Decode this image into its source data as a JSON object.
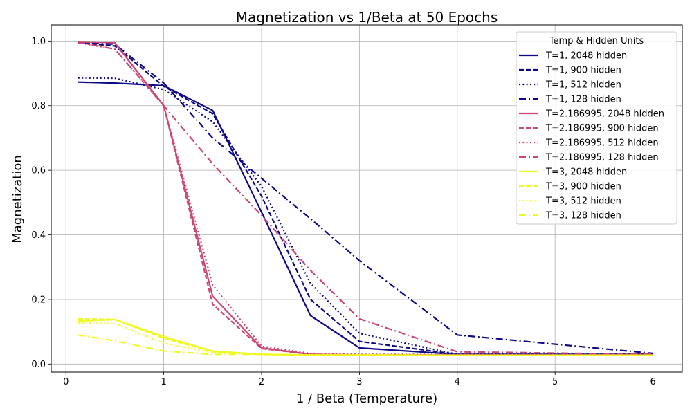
{
  "chart_data": {
    "type": "line",
    "title": "Magnetization vs 1/Beta at 50 Epochs",
    "xlabel": "1 / Beta (Temperature)",
    "ylabel": "Magnetization",
    "xlim": [
      -0.15,
      6.3
    ],
    "ylim": [
      -0.025,
      1.05
    ],
    "xticks": [
      0,
      1,
      2,
      3,
      4,
      5,
      6
    ],
    "xtick_labels": [
      "0",
      "1",
      "2",
      "3",
      "4",
      "5",
      "6"
    ],
    "yticks": [
      0.0,
      0.2,
      0.4,
      0.6,
      0.8,
      1.0
    ],
    "ytick_labels": [
      "0.0",
      "0.2",
      "0.4",
      "0.6",
      "0.8",
      "1.0"
    ],
    "grid": true,
    "legend_title": "Temp & Hidden Units",
    "legend_position": "top-right",
    "x": [
      0.125,
      0.5,
      1.0,
      1.5,
      2.0,
      2.5,
      3.0,
      4.0,
      6.0
    ],
    "series": [
      {
        "name": "T=1, 2048 hidden",
        "color": "#0d0887",
        "dash": "solid",
        "values": [
          0.873,
          0.87,
          0.862,
          0.785,
          0.47,
          0.15,
          0.05,
          0.03,
          0.03
        ]
      },
      {
        "name": "T=1, 900 hidden",
        "color": "#0d0887",
        "dash": "dashed",
        "values": [
          0.995,
          0.985,
          0.86,
          0.775,
          0.52,
          0.2,
          0.07,
          0.03,
          0.03
        ]
      },
      {
        "name": "T=1, 512 hidden",
        "color": "#0d0887",
        "dash": "dotted",
        "values": [
          0.886,
          0.885,
          0.85,
          0.75,
          0.55,
          0.25,
          0.095,
          0.03,
          0.03
        ]
      },
      {
        "name": "T=1, 128 hidden",
        "color": "#0d0887",
        "dash": "dashdot",
        "values": [
          0.998,
          0.99,
          0.87,
          0.7,
          0.575,
          0.45,
          0.32,
          0.09,
          0.033
        ]
      },
      {
        "name": "T=2.186995, 2048 hidden",
        "color": "#cc4778",
        "dash": "solid",
        "values": [
          0.998,
          0.995,
          0.8,
          0.21,
          0.05,
          0.03,
          0.028,
          0.028,
          0.028
        ]
      },
      {
        "name": "T=2.186995, 900 hidden",
        "color": "#cc4778",
        "dash": "dashed",
        "values": [
          0.998,
          0.995,
          0.8,
          0.185,
          0.048,
          0.03,
          0.028,
          0.028,
          0.028
        ]
      },
      {
        "name": "T=2.186995, 512 hidden",
        "color": "#cc4778",
        "dash": "dotted",
        "values": [
          0.995,
          0.975,
          0.8,
          0.245,
          0.055,
          0.033,
          0.03,
          0.03,
          0.028
        ]
      },
      {
        "name": "T=2.186995, 128 hidden",
        "color": "#cc4778",
        "dash": "dashdot",
        "values": [
          0.996,
          0.975,
          0.8,
          0.62,
          0.46,
          0.29,
          0.14,
          0.038,
          0.03
        ]
      },
      {
        "name": "T=3, 2048 hidden",
        "color": "#f0f921",
        "dash": "solid",
        "values": [
          0.133,
          0.138,
          0.085,
          0.04,
          0.03,
          0.028,
          0.028,
          0.027,
          0.027
        ]
      },
      {
        "name": "T=3, 900 hidden",
        "color": "#f0f921",
        "dash": "dashed",
        "values": [
          0.14,
          0.138,
          0.08,
          0.038,
          0.03,
          0.028,
          0.028,
          0.027,
          0.027
        ]
      },
      {
        "name": "T=3, 512 hidden",
        "color": "#f0f921",
        "dash": "dotted",
        "values": [
          0.128,
          0.125,
          0.065,
          0.035,
          0.03,
          0.028,
          0.028,
          0.027,
          0.027
        ]
      },
      {
        "name": "T=3, 128 hidden",
        "color": "#f0f921",
        "dash": "dashdot",
        "values": [
          0.09,
          0.072,
          0.04,
          0.03,
          0.03,
          0.028,
          0.028,
          0.027,
          0.027
        ]
      }
    ]
  }
}
